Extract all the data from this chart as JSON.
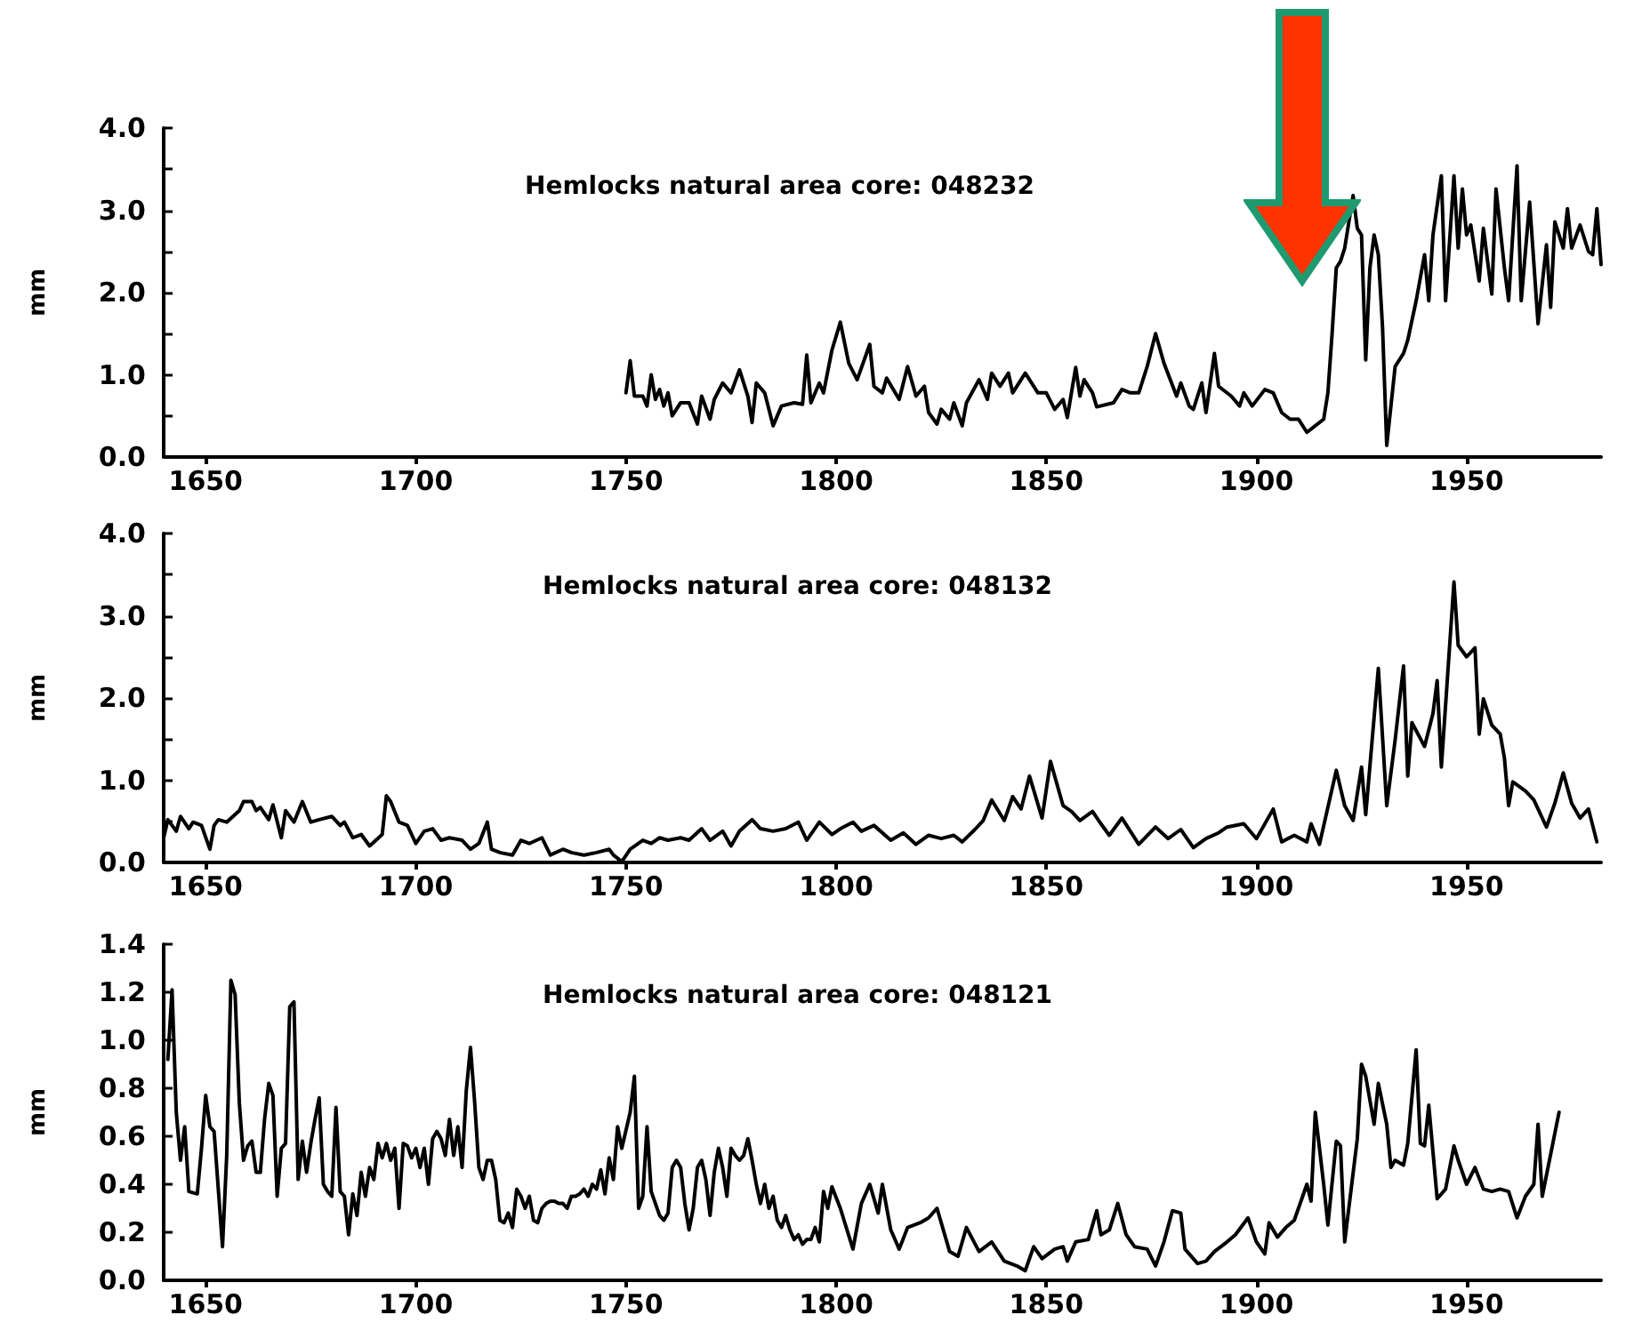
{
  "chart_data": [
    {
      "type": "line",
      "title": "Hemlocks natural area core: 048232",
      "ylabel": "mm",
      "xlim": [
        1640,
        1982
      ],
      "xticks": [
        1650,
        1700,
        1750,
        1800,
        1850,
        1900,
        1950
      ],
      "ylim": [
        0,
        4
      ],
      "yticks": [
        {
          "value": 0,
          "label": "0.0"
        },
        {
          "value": 0.5,
          "label": null
        },
        {
          "value": 1,
          "label": "1.0"
        },
        {
          "value": 1.5,
          "label": null
        },
        {
          "value": 2,
          "label": "2.0"
        },
        {
          "value": 2.5,
          "label": null
        },
        {
          "value": 3,
          "label": "3.0"
        },
        {
          "value": 3.5,
          "label": null
        },
        {
          "value": 4,
          "label": "4.0"
        }
      ],
      "marker": "none",
      "line_style": "solid",
      "series": [
        {
          "color": "#000000",
          "x": [
            1750,
            1751,
            1752,
            1754,
            1755,
            1756,
            1757,
            1758,
            1759,
            1760,
            1761,
            1763,
            1765,
            1767,
            1768,
            1770,
            1771,
            1773,
            1775,
            1777,
            1779,
            1780,
            1781,
            1783,
            1785,
            1787,
            1790,
            1792,
            1793,
            1794,
            1796,
            1797,
            1799,
            1801,
            1803,
            1805,
            1808,
            1809,
            1811,
            1812,
            1815,
            1817,
            1819,
            1821,
            1822,
            1824,
            1825,
            1827,
            1828,
            1830,
            1831,
            1834,
            1836,
            1837,
            1839,
            1841,
            1842,
            1845,
            1848,
            1850,
            1852,
            1854,
            1855,
            1857,
            1858,
            1859,
            1861,
            1862,
            1866,
            1868,
            1870,
            1872,
            1874,
            1876,
            1878,
            1881,
            1882,
            1884,
            1885,
            1887,
            1888,
            1890,
            1891,
            1894,
            1896,
            1897,
            1899,
            1902,
            1904,
            1906,
            1908,
            1910,
            1912,
            1914,
            1916,
            1917,
            1918,
            1919,
            1920,
            1921,
            1923,
            1924,
            1925,
            1926,
            1927,
            1928,
            1929,
            1930,
            1931,
            1933,
            1935,
            1936,
            1938,
            1940,
            1941,
            1942,
            1944,
            1945,
            1947,
            1948,
            1949,
            1950,
            1951,
            1953,
            1954,
            1956,
            1957,
            1959,
            1960,
            1962,
            1963,
            1965,
            1967,
            1969,
            1970,
            1971,
            1973,
            1974,
            1975,
            1977,
            1979,
            1980,
            1981,
            1982
          ],
          "values": [
            0.78,
            1.17,
            0.74,
            0.74,
            0.62,
            1.0,
            0.7,
            0.82,
            0.62,
            0.78,
            0.5,
            0.66,
            0.66,
            0.4,
            0.74,
            0.46,
            0.7,
            0.9,
            0.78,
            1.06,
            0.74,
            0.42,
            0.9,
            0.78,
            0.38,
            0.62,
            0.66,
            0.64,
            1.24,
            0.66,
            0.9,
            0.78,
            1.3,
            1.64,
            1.14,
            0.94,
            1.37,
            0.86,
            0.78,
            0.96,
            0.7,
            1.1,
            0.74,
            0.86,
            0.54,
            0.4,
            0.58,
            0.46,
            0.66,
            0.38,
            0.66,
            0.94,
            0.7,
            1.02,
            0.86,
            1.02,
            0.78,
            1.02,
            0.78,
            0.78,
            0.58,
            0.7,
            0.48,
            1.09,
            0.74,
            0.94,
            0.78,
            0.61,
            0.66,
            0.82,
            0.78,
            0.78,
            1.1,
            1.5,
            1.14,
            0.74,
            0.9,
            0.62,
            0.58,
            0.9,
            0.54,
            1.26,
            0.86,
            0.74,
            0.62,
            0.78,
            0.62,
            0.82,
            0.78,
            0.54,
            0.46,
            0.46,
            0.3,
            0.38,
            0.46,
            0.78,
            1.5,
            2.3,
            2.38,
            2.54,
            3.18,
            2.78,
            2.7,
            1.18,
            2.3,
            2.7,
            2.46,
            1.58,
            0.14,
            1.1,
            1.26,
            1.42,
            1.9,
            2.46,
            1.9,
            2.7,
            3.42,
            1.9,
            3.42,
            2.54,
            3.26,
            2.7,
            2.82,
            2.14,
            2.78,
            1.98,
            3.26,
            2.3,
            1.9,
            3.54,
            1.9,
            3.1,
            1.62,
            2.58,
            1.82,
            2.86,
            2.54,
            3.02,
            2.54,
            2.82,
            2.5,
            2.46,
            3.02,
            2.34
          ]
        }
      ]
    },
    {
      "type": "line",
      "title": "Hemlocks natural area core: 048132",
      "ylabel": "mm",
      "xlim": [
        1640,
        1982
      ],
      "xticks": [
        1650,
        1700,
        1750,
        1800,
        1850,
        1900,
        1950
      ],
      "ylim": [
        0,
        4
      ],
      "yticks": [
        {
          "value": 0,
          "label": "0.0"
        },
        {
          "value": 0.5,
          "label": null
        },
        {
          "value": 1,
          "label": "1.0"
        },
        {
          "value": 1.5,
          "label": null
        },
        {
          "value": 2,
          "label": "2.0"
        },
        {
          "value": 2.5,
          "label": null
        },
        {
          "value": 3,
          "label": "3.0"
        },
        {
          "value": 3.5,
          "label": null
        },
        {
          "value": 4,
          "label": "4.0"
        }
      ],
      "marker": "none",
      "line_style": "solid",
      "series": [
        {
          "color": "#000000",
          "x": [
            1640,
            1641,
            1643,
            1644,
            1646,
            1647,
            1649,
            1651,
            1652,
            1653,
            1655,
            1658,
            1659,
            1661,
            1662,
            1663,
            1665,
            1666,
            1668,
            1669,
            1671,
            1673,
            1675,
            1677,
            1680,
            1682,
            1683,
            1685,
            1687,
            1689,
            1692,
            1693,
            1694,
            1696,
            1698,
            1700,
            1702,
            1704,
            1706,
            1708,
            1711,
            1713,
            1715,
            1717,
            1718,
            1720,
            1723,
            1725,
            1727,
            1730,
            1732,
            1735,
            1737,
            1740,
            1743,
            1746,
            1747,
            1749,
            1751,
            1754,
            1756,
            1758,
            1760,
            1763,
            1765,
            1768,
            1770,
            1773,
            1775,
            1777,
            1780,
            1782,
            1785,
            1788,
            1791,
            1793,
            1796,
            1799,
            1801,
            1804,
            1806,
            1809,
            1813,
            1816,
            1819,
            1822,
            1825,
            1828,
            1830,
            1833,
            1835,
            1837,
            1840,
            1842,
            1844,
            1846,
            1849,
            1851,
            1854,
            1856,
            1858,
            1861,
            1863,
            1865,
            1868,
            1872,
            1876,
            1879,
            1882,
            1885,
            1888,
            1891,
            1893,
            1897,
            1900,
            1904,
            1906,
            1909,
            1912,
            1913,
            1915,
            1919,
            1921,
            1923,
            1925,
            1926,
            1929,
            1931,
            1933,
            1935,
            1936,
            1937,
            1940,
            1942,
            1943,
            1944,
            1947,
            1948,
            1950,
            1952,
            1953,
            1954,
            1956,
            1958,
            1959,
            1960,
            1961,
            1964,
            1966,
            1969,
            1971,
            1973,
            1975,
            1977,
            1979,
            1981
          ],
          "values": [
            0.3,
            0.52,
            0.38,
            0.56,
            0.41,
            0.49,
            0.45,
            0.16,
            0.45,
            0.52,
            0.49,
            0.63,
            0.74,
            0.74,
            0.63,
            0.67,
            0.52,
            0.7,
            0.3,
            0.63,
            0.49,
            0.74,
            0.49,
            0.52,
            0.56,
            0.45,
            0.49,
            0.3,
            0.34,
            0.2,
            0.34,
            0.81,
            0.74,
            0.49,
            0.45,
            0.23,
            0.38,
            0.41,
            0.27,
            0.3,
            0.27,
            0.16,
            0.23,
            0.49,
            0.16,
            0.12,
            0.09,
            0.27,
            0.23,
            0.3,
            0.09,
            0.16,
            0.12,
            0.09,
            0.12,
            0.16,
            0.09,
            0.01,
            0.16,
            0.27,
            0.23,
            0.3,
            0.27,
            0.3,
            0.27,
            0.41,
            0.27,
            0.38,
            0.2,
            0.38,
            0.52,
            0.41,
            0.38,
            0.41,
            0.49,
            0.27,
            0.49,
            0.34,
            0.41,
            0.49,
            0.38,
            0.45,
            0.27,
            0.36,
            0.22,
            0.33,
            0.29,
            0.33,
            0.25,
            0.4,
            0.51,
            0.76,
            0.51,
            0.8,
            0.65,
            1.05,
            0.54,
            1.23,
            0.69,
            0.62,
            0.51,
            0.62,
            0.47,
            0.33,
            0.54,
            0.22,
            0.43,
            0.29,
            0.4,
            0.18,
            0.29,
            0.36,
            0.43,
            0.47,
            0.29,
            0.65,
            0.25,
            0.33,
            0.25,
            0.47,
            0.22,
            1.12,
            0.69,
            0.51,
            1.16,
            0.58,
            2.36,
            0.69,
            1.49,
            2.39,
            1.05,
            1.7,
            1.41,
            1.81,
            2.21,
            1.16,
            3.41,
            2.64,
            2.5,
            2.61,
            1.56,
            1.99,
            1.67,
            1.56,
            1.27,
            0.69,
            0.98,
            0.87,
            0.76,
            0.43,
            0.72,
            1.09,
            0.72,
            0.54,
            0.65,
            0.25
          ]
        }
      ]
    },
    {
      "type": "line",
      "title": "Hemlocks natural area core: 048121",
      "ylabel": "mm",
      "xlim": [
        1640,
        1982
      ],
      "xticks": [
        1650,
        1700,
        1750,
        1800,
        1850,
        1900,
        1950
      ],
      "ylim": [
        0,
        1.4
      ],
      "yticks": [
        {
          "value": 0,
          "label": "0.0"
        },
        {
          "value": 0.2,
          "label": "0.2"
        },
        {
          "value": 0.4,
          "label": "0.4"
        },
        {
          "value": 0.6,
          "label": "0.6"
        },
        {
          "value": 0.8,
          "label": "0.8"
        },
        {
          "value": 1,
          "label": "1.0"
        },
        {
          "value": 1.2,
          "label": "1.2"
        },
        {
          "value": 1.4,
          "label": "1.4"
        }
      ],
      "marker": "none",
      "line_style": "solid",
      "series": [
        {
          "color": "#000000",
          "x": [
            1641,
            1642,
            1643,
            1644,
            1645,
            1646,
            1648,
            1649,
            1650,
            1651,
            1652,
            1654,
            1655,
            1656,
            1657,
            1658,
            1659,
            1660,
            1661,
            1662,
            1663,
            1664,
            1665,
            1666,
            1667,
            1668,
            1669,
            1670,
            1671,
            1672,
            1673,
            1674,
            1675,
            1676,
            1677,
            1678,
            1679,
            1680,
            1681,
            1682,
            1683,
            1684,
            1685,
            1686,
            1687,
            1688,
            1689,
            1690,
            1691,
            1692,
            1693,
            1694,
            1695,
            1696,
            1697,
            1698,
            1699,
            1700,
            1701,
            1702,
            1703,
            1704,
            1705,
            1706,
            1707,
            1708,
            1709,
            1710,
            1711,
            1712,
            1713,
            1714,
            1715,
            1716,
            1717,
            1718,
            1719,
            1720,
            1721,
            1722,
            1723,
            1724,
            1725,
            1726,
            1727,
            1728,
            1729,
            1730,
            1731,
            1732,
            1733,
            1734,
            1735,
            1736,
            1737,
            1738,
            1739,
            1740,
            1741,
            1742,
            1743,
            1744,
            1745,
            1746,
            1747,
            1748,
            1749,
            1751,
            1752,
            1753,
            1754,
            1755,
            1756,
            1757,
            1758,
            1759,
            1760,
            1761,
            1762,
            1763,
            1764,
            1765,
            1766,
            1767,
            1768,
            1769,
            1770,
            1771,
            1772,
            1773,
            1774,
            1775,
            1776,
            1777,
            1778,
            1779,
            1780,
            1781,
            1782,
            1783,
            1784,
            1785,
            1786,
            1787,
            1788,
            1789,
            1790,
            1791,
            1792,
            1793,
            1794,
            1795,
            1796,
            1797,
            1798,
            1799,
            1801,
            1804,
            1806,
            1808,
            1810,
            1811,
            1813,
            1815,
            1817,
            1820,
            1822,
            1824,
            1827,
            1829,
            1831,
            1834,
            1837,
            1840,
            1843,
            1845,
            1847,
            1849,
            1852,
            1854,
            1855,
            1857,
            1860,
            1862,
            1863,
            1865,
            1867,
            1869,
            1871,
            1874,
            1876,
            1878,
            1880,
            1882,
            1883,
            1886,
            1888,
            1890,
            1893,
            1895,
            1898,
            1900,
            1902,
            1903,
            1905,
            1907,
            1909,
            1912,
            1913,
            1914,
            1916,
            1917,
            1919,
            1920,
            1921,
            1924,
            1925,
            1926,
            1928,
            1929,
            1931,
            1932,
            1933,
            1935,
            1936,
            1938,
            1939,
            1940,
            1941,
            1943,
            1945,
            1947,
            1948,
            1950,
            1952,
            1954,
            1956,
            1958,
            1960,
            1962,
            1964,
            1966,
            1967,
            1968,
            1972
          ],
          "values": [
            0.92,
            1.21,
            0.7,
            0.5,
            0.64,
            0.37,
            0.36,
            0.55,
            0.77,
            0.64,
            0.62,
            0.14,
            0.52,
            1.25,
            1.19,
            0.74,
            0.5,
            0.56,
            0.58,
            0.45,
            0.45,
            0.67,
            0.82,
            0.77,
            0.35,
            0.55,
            0.57,
            1.14,
            1.16,
            0.42,
            0.58,
            0.45,
            0.57,
            0.67,
            0.76,
            0.4,
            0.37,
            0.35,
            0.72,
            0.37,
            0.35,
            0.19,
            0.36,
            0.27,
            0.45,
            0.35,
            0.47,
            0.42,
            0.57,
            0.51,
            0.57,
            0.5,
            0.55,
            0.3,
            0.57,
            0.56,
            0.51,
            0.55,
            0.47,
            0.55,
            0.4,
            0.59,
            0.62,
            0.59,
            0.52,
            0.67,
            0.52,
            0.64,
            0.47,
            0.79,
            0.97,
            0.74,
            0.47,
            0.42,
            0.5,
            0.5,
            0.42,
            0.25,
            0.24,
            0.28,
            0.22,
            0.38,
            0.35,
            0.3,
            0.35,
            0.25,
            0.24,
            0.3,
            0.32,
            0.33,
            0.33,
            0.32,
            0.32,
            0.3,
            0.35,
            0.35,
            0.36,
            0.38,
            0.35,
            0.4,
            0.38,
            0.46,
            0.36,
            0.51,
            0.42,
            0.64,
            0.55,
            0.7,
            0.85,
            0.3,
            0.35,
            0.64,
            0.37,
            0.32,
            0.27,
            0.25,
            0.28,
            0.47,
            0.5,
            0.47,
            0.32,
            0.21,
            0.3,
            0.47,
            0.5,
            0.42,
            0.27,
            0.45,
            0.55,
            0.47,
            0.35,
            0.55,
            0.52,
            0.5,
            0.52,
            0.59,
            0.5,
            0.4,
            0.32,
            0.4,
            0.3,
            0.35,
            0.25,
            0.22,
            0.27,
            0.21,
            0.17,
            0.19,
            0.15,
            0.17,
            0.17,
            0.22,
            0.16,
            0.37,
            0.3,
            0.39,
            0.3,
            0.13,
            0.32,
            0.4,
            0.28,
            0.4,
            0.21,
            0.13,
            0.22,
            0.24,
            0.26,
            0.3,
            0.12,
            0.1,
            0.22,
            0.12,
            0.16,
            0.08,
            0.06,
            0.04,
            0.14,
            0.09,
            0.13,
            0.14,
            0.08,
            0.16,
            0.17,
            0.29,
            0.19,
            0.21,
            0.32,
            0.19,
            0.14,
            0.13,
            0.06,
            0.16,
            0.29,
            0.28,
            0.13,
            0.07,
            0.08,
            0.12,
            0.16,
            0.19,
            0.26,
            0.16,
            0.11,
            0.24,
            0.18,
            0.22,
            0.25,
            0.4,
            0.33,
            0.7,
            0.4,
            0.23,
            0.58,
            0.56,
            0.16,
            0.59,
            0.9,
            0.85,
            0.65,
            0.82,
            0.65,
            0.47,
            0.5,
            0.48,
            0.57,
            0.96,
            0.57,
            0.56,
            0.73,
            0.34,
            0.38,
            0.56,
            0.5,
            0.4,
            0.47,
            0.38,
            0.37,
            0.38,
            0.37,
            0.26,
            0.35,
            0.4,
            0.65,
            0.35,
            0.7
          ]
        }
      ]
    }
  ]
}
